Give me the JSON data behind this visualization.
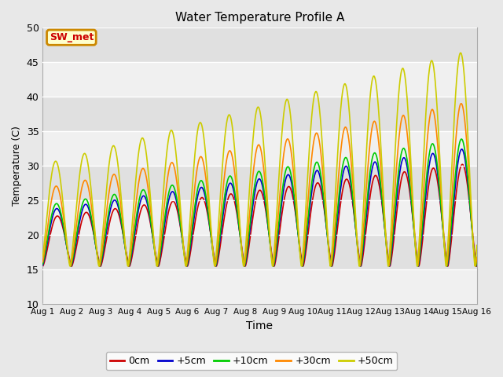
{
  "title": "Water Temperature Profile A",
  "xlabel": "Time",
  "ylabel": "Temperature (C)",
  "ylim": [
    10,
    50
  ],
  "xlim": [
    0,
    15
  ],
  "yticks": [
    10,
    15,
    20,
    25,
    30,
    35,
    40,
    45,
    50
  ],
  "xtick_labels": [
    "Aug 1",
    "Aug 2",
    "Aug 3",
    "Aug 4",
    "Aug 5",
    "Aug 6",
    "Aug 7",
    "Aug 8",
    "Aug 9",
    "Aug 10",
    "Aug 11",
    "Aug 12",
    "Aug 13",
    "Aug 14",
    "Aug 15",
    "Aug 16"
  ],
  "series_colors": [
    "#cc0000",
    "#0000cc",
    "#00cc00",
    "#ff8800",
    "#cccc00"
  ],
  "series_labels": [
    "0cm",
    "+5cm",
    "+10cm",
    "+30cm",
    "+50cm"
  ],
  "annotation_text": "SW_met",
  "annotation_fg": "#cc0000",
  "annotation_bg": "#ffffcc",
  "annotation_border": "#cc8800",
  "fig_bg": "#e8e8e8",
  "plot_bg_light": "#f0f0f0",
  "plot_bg_dark": "#e0e0e0",
  "grid_color": "#ffffff",
  "n_days": 15,
  "pts_per_day": 120,
  "base_min": 15.5,
  "amp_start": 7.0,
  "amp_end": 15.0,
  "amp_factors": [
    1.0,
    1.15,
    1.25,
    1.6,
    2.1
  ],
  "phase_shifts": [
    0.0,
    0.02,
    0.03,
    0.04,
    0.06
  ],
  "cycles_per_day": 1.0,
  "linewidth": 1.2
}
